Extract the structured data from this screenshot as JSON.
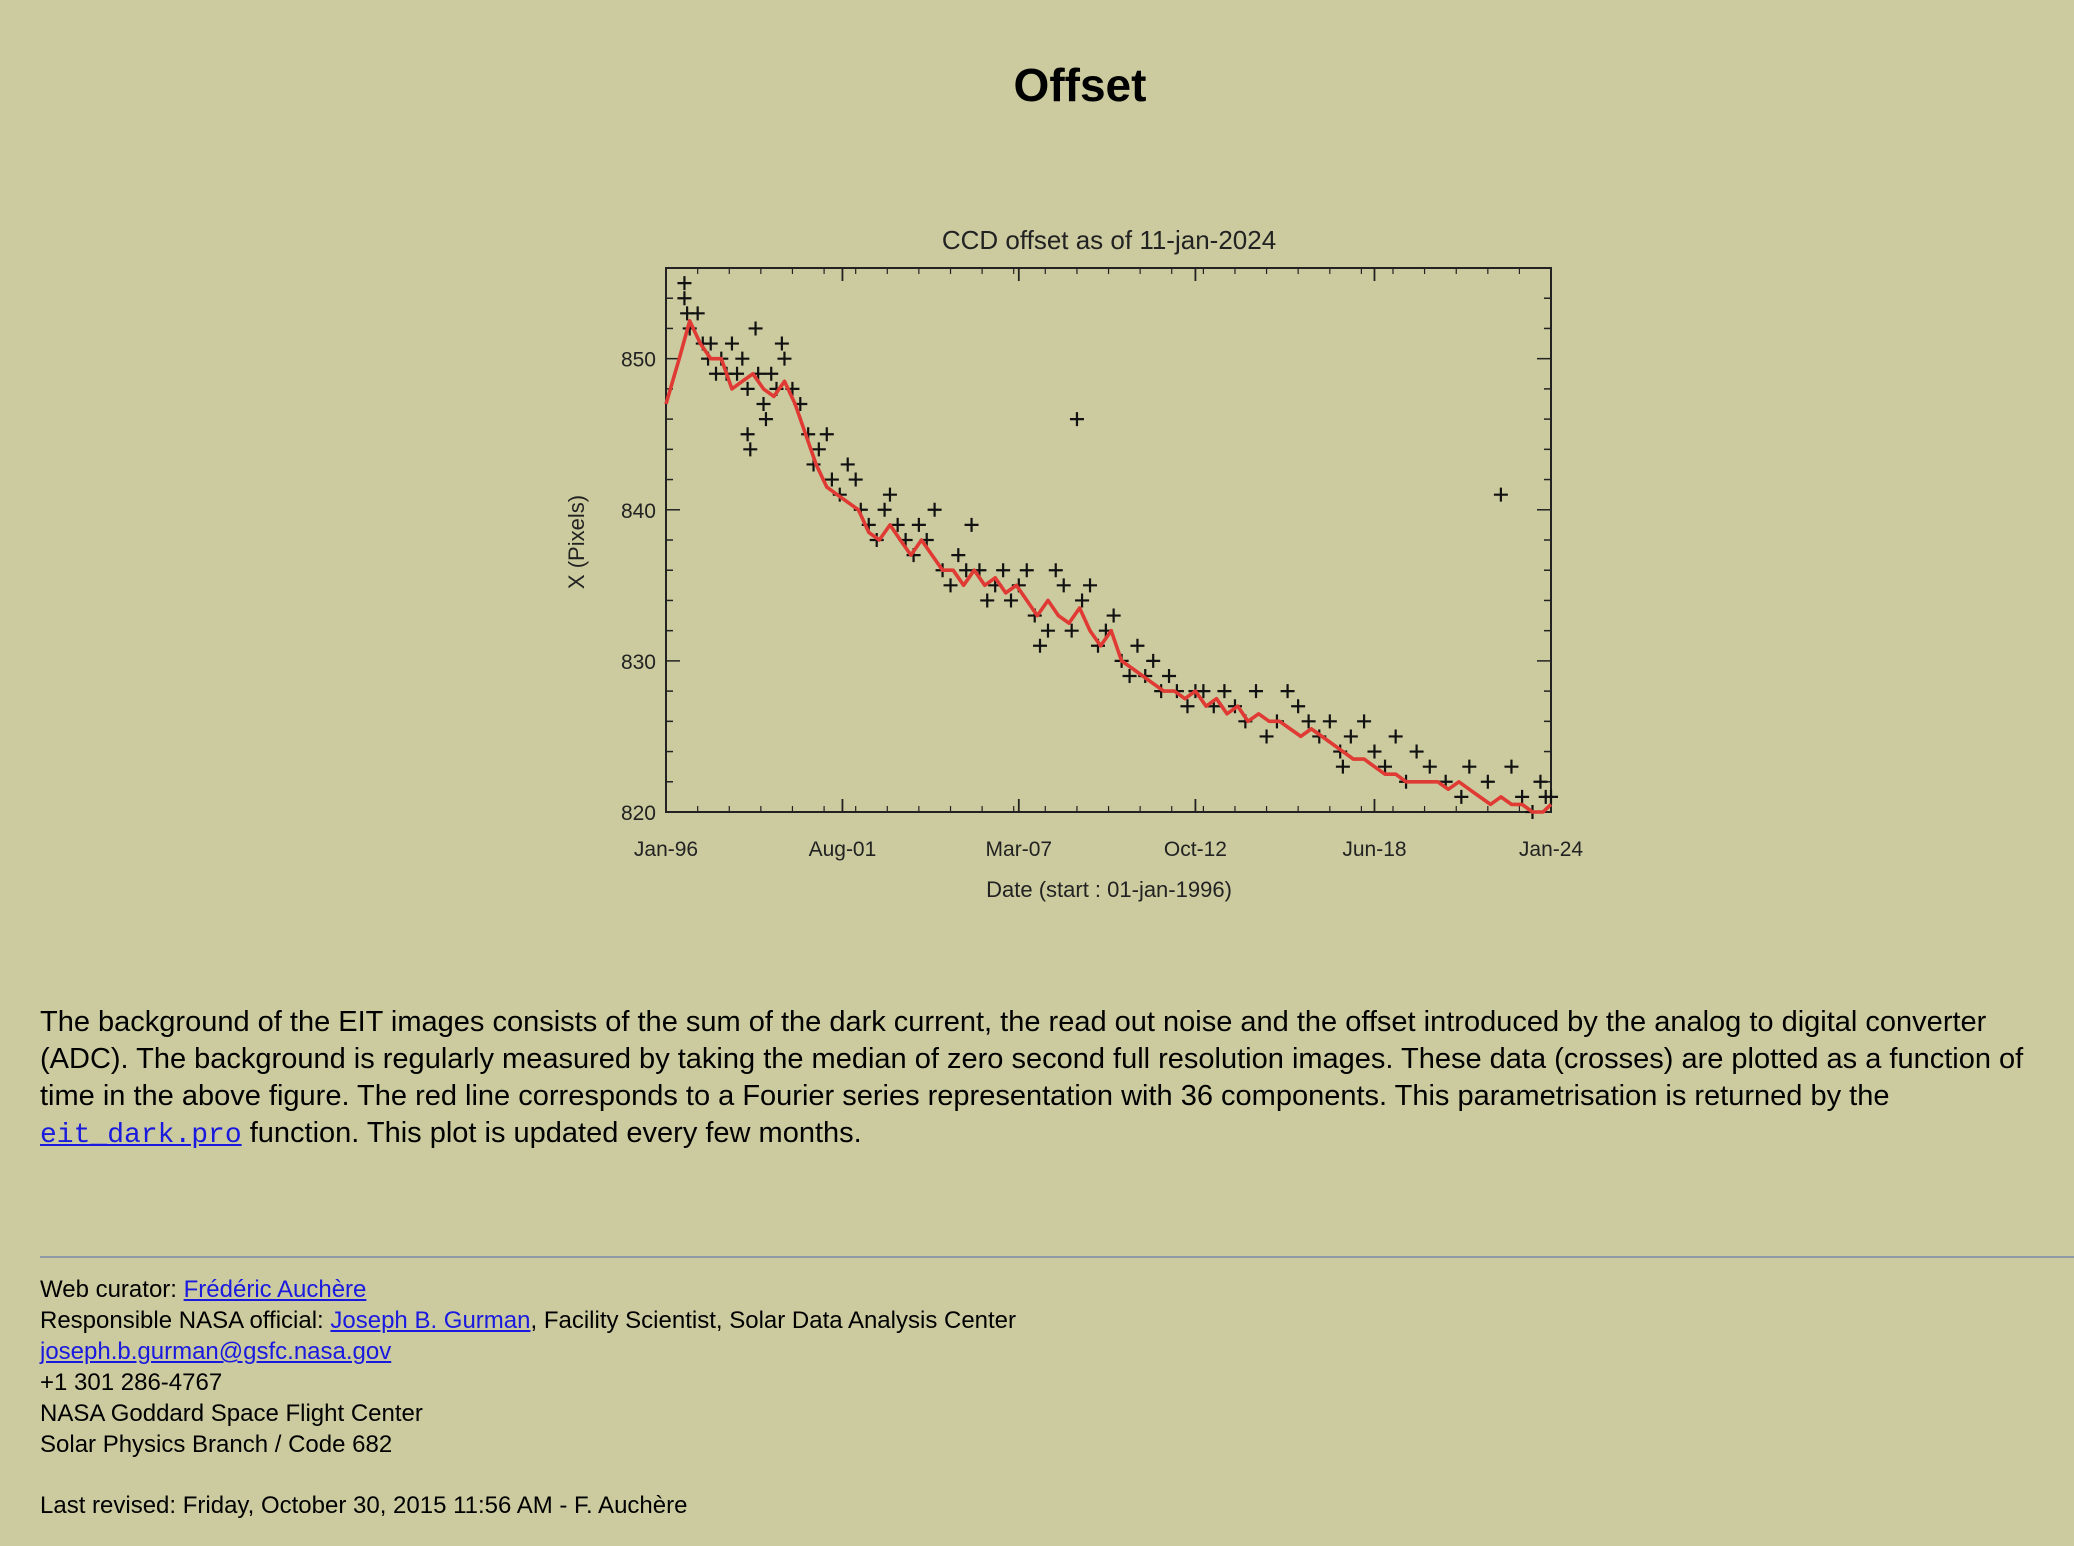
{
  "page": {
    "title": "Offset"
  },
  "description": {
    "before_link": "The background of the EIT images consists of the sum of the dark current, the read out noise and the offset introduced by the analog to digital converter (ADC). The background is regularly measured by taking the median of zero second full resolution images. These data (crosses) are plotted as a function of time in the above figure. The red line corresponds to a Fourier series representation with 36 components. This parametrisation is returned by the ",
    "link_text": "eit_dark.pro",
    "after_link": " function. This plot is updated every few months."
  },
  "footer": {
    "curator_label": "Web curator: ",
    "curator_name": "Frédéric Auchère",
    "official_label": "Responsible NASA official: ",
    "official_name": "Joseph B. Gurman",
    "official_role": ", Facility Scientist, Solar Data Analysis Center",
    "email": "joseph.b.gurman@gsfc.nasa.gov",
    "phone": "+1 301 286-4767",
    "org1": "NASA Goddard Space Flight Center",
    "org2": "Solar Physics Branch / Code 682",
    "last_revised": "Last revised: Friday, October 30, 2015 11:56 AM - F. Auchère"
  },
  "colors": {
    "background": "#cbcb9f",
    "fit_line": "#e03a34",
    "link": "#1a1adf"
  },
  "chart_data": {
    "type": "scatter",
    "title": "CCD offset as of 11-jan-2024",
    "xlabel": "Date (start : 01-jan-1996)",
    "ylabel": "X (Pixels)",
    "xlim": [
      "1996-01-01",
      "2024-01-01"
    ],
    "ylim": [
      820,
      856
    ],
    "x_ticks": [
      "1996-01-01",
      "2001-08-01",
      "2007-03-01",
      "2012-10-01",
      "2018-06-01",
      "2024-01-01"
    ],
    "x_tick_labels": [
      "Jan-96",
      "Aug-01",
      "Mar-07",
      "Oct-12",
      "Jun-18",
      "Jan-24"
    ],
    "y_ticks": [
      820,
      830,
      840,
      850
    ],
    "y_tick_labels": [
      "820",
      "830",
      "840",
      "850"
    ],
    "grid": false,
    "series": [
      {
        "marker": "cross",
        "points": [
          [
            "1996-08",
            855
          ],
          [
            "1996-08",
            854
          ],
          [
            "1996-09",
            853
          ],
          [
            "1996-10",
            852
          ],
          [
            "1997-01",
            853
          ],
          [
            "1997-03",
            851
          ],
          [
            "1997-05",
            850
          ],
          [
            "1997-06",
            851
          ],
          [
            "1997-08",
            849
          ],
          [
            "1997-10",
            850
          ],
          [
            "1997-12",
            849
          ],
          [
            "1998-02",
            851
          ],
          [
            "1998-04",
            849
          ],
          [
            "1998-06",
            850
          ],
          [
            "1998-08",
            848
          ],
          [
            "1998-08",
            845
          ],
          [
            "1998-09",
            844
          ],
          [
            "1998-11",
            852
          ],
          [
            "1998-12",
            849
          ],
          [
            "1999-02",
            847
          ],
          [
            "1999-03",
            846
          ],
          [
            "1999-05",
            849
          ],
          [
            "1999-07",
            848
          ],
          [
            "1999-09",
            851
          ],
          [
            "1999-10",
            850
          ],
          [
            "2000-01",
            848
          ],
          [
            "2000-04",
            847
          ],
          [
            "2000-07",
            845
          ],
          [
            "2000-09",
            843
          ],
          [
            "2000-11",
            844
          ],
          [
            "2001-02",
            845
          ],
          [
            "2001-04",
            842
          ],
          [
            "2001-07",
            841
          ],
          [
            "2001-10",
            843
          ],
          [
            "2002-01",
            842
          ],
          [
            "2002-03",
            840
          ],
          [
            "2002-06",
            839
          ],
          [
            "2002-09",
            838
          ],
          [
            "2002-12",
            840
          ],
          [
            "2003-02",
            841
          ],
          [
            "2003-05",
            839
          ],
          [
            "2003-08",
            838
          ],
          [
            "2003-11",
            837
          ],
          [
            "2004-01",
            839
          ],
          [
            "2004-04",
            838
          ],
          [
            "2004-07",
            840
          ],
          [
            "2004-10",
            836
          ],
          [
            "2005-01",
            835
          ],
          [
            "2005-04",
            837
          ],
          [
            "2005-07",
            836
          ],
          [
            "2005-09",
            839
          ],
          [
            "2005-12",
            836
          ],
          [
            "2006-03",
            834
          ],
          [
            "2006-06",
            835
          ],
          [
            "2006-09",
            836
          ],
          [
            "2006-12",
            834
          ],
          [
            "2007-03",
            835
          ],
          [
            "2007-06",
            836
          ],
          [
            "2007-09",
            833
          ],
          [
            "2007-11",
            831
          ],
          [
            "2008-02",
            832
          ],
          [
            "2008-05",
            836
          ],
          [
            "2008-08",
            835
          ],
          [
            "2008-11",
            832
          ],
          [
            "2009-01",
            846
          ],
          [
            "2009-03",
            834
          ],
          [
            "2009-06",
            835
          ],
          [
            "2009-09",
            831
          ],
          [
            "2009-12",
            832
          ],
          [
            "2010-03",
            833
          ],
          [
            "2010-06",
            830
          ],
          [
            "2010-09",
            829
          ],
          [
            "2010-12",
            831
          ],
          [
            "2011-03",
            829
          ],
          [
            "2011-06",
            830
          ],
          [
            "2011-09",
            828
          ],
          [
            "2011-12",
            829
          ],
          [
            "2012-03",
            828
          ],
          [
            "2012-07",
            827
          ],
          [
            "2012-10",
            828
          ],
          [
            "2013-01",
            828
          ],
          [
            "2013-05",
            827
          ],
          [
            "2013-09",
            828
          ],
          [
            "2014-01",
            827
          ],
          [
            "2014-05",
            826
          ],
          [
            "2014-09",
            828
          ],
          [
            "2015-01",
            825
          ],
          [
            "2015-05",
            826
          ],
          [
            "2015-09",
            828
          ],
          [
            "2016-01",
            827
          ],
          [
            "2016-05",
            826
          ],
          [
            "2016-09",
            825
          ],
          [
            "2017-01",
            826
          ],
          [
            "2017-05",
            824
          ],
          [
            "2017-06",
            823
          ],
          [
            "2017-09",
            825
          ],
          [
            "2018-02",
            826
          ],
          [
            "2018-06",
            824
          ],
          [
            "2018-10",
            823
          ],
          [
            "2019-02",
            825
          ],
          [
            "2019-06",
            822
          ],
          [
            "2019-10",
            824
          ],
          [
            "2020-03",
            823
          ],
          [
            "2020-09",
            822
          ],
          [
            "2021-03",
            821
          ],
          [
            "2021-06",
            823
          ],
          [
            "2022-01",
            822
          ],
          [
            "2022-06",
            841
          ],
          [
            "2022-10",
            823
          ],
          [
            "2023-02",
            821
          ],
          [
            "2023-06",
            820
          ],
          [
            "2023-09",
            822
          ],
          [
            "2023-11",
            821
          ],
          [
            "2024-01",
            821
          ]
        ]
      },
      {
        "name": "Fourier fit",
        "type": "line",
        "color": "#e03a34",
        "points": [
          [
            "1996-01",
            847
          ],
          [
            "1996-06",
            850
          ],
          [
            "1996-10",
            852.5
          ],
          [
            "1997-02",
            851
          ],
          [
            "1997-06",
            850
          ],
          [
            "1997-10",
            850
          ],
          [
            "1998-02",
            848
          ],
          [
            "1998-06",
            848.5
          ],
          [
            "1998-10",
            849
          ],
          [
            "1999-02",
            848
          ],
          [
            "1999-06",
            847.5
          ],
          [
            "1999-10",
            848.5
          ],
          [
            "2000-02",
            847
          ],
          [
            "2000-06",
            845
          ],
          [
            "2000-10",
            843
          ],
          [
            "2001-02",
            841.5
          ],
          [
            "2001-06",
            841
          ],
          [
            "2001-10",
            840.5
          ],
          [
            "2002-02",
            840
          ],
          [
            "2002-06",
            838.5
          ],
          [
            "2002-10",
            838
          ],
          [
            "2003-02",
            839
          ],
          [
            "2003-06",
            838
          ],
          [
            "2003-10",
            837
          ],
          [
            "2004-02",
            838
          ],
          [
            "2004-06",
            837
          ],
          [
            "2004-10",
            836
          ],
          [
            "2005-02",
            836
          ],
          [
            "2005-06",
            835
          ],
          [
            "2005-10",
            836
          ],
          [
            "2006-02",
            835
          ],
          [
            "2006-06",
            835.5
          ],
          [
            "2006-10",
            834.5
          ],
          [
            "2007-02",
            835
          ],
          [
            "2007-06",
            834
          ],
          [
            "2007-10",
            833
          ],
          [
            "2008-02",
            834
          ],
          [
            "2008-06",
            833
          ],
          [
            "2008-10",
            832.5
          ],
          [
            "2009-02",
            833.5
          ],
          [
            "2009-06",
            832
          ],
          [
            "2009-10",
            831
          ],
          [
            "2010-02",
            832
          ],
          [
            "2010-06",
            830
          ],
          [
            "2010-10",
            829.5
          ],
          [
            "2011-02",
            829
          ],
          [
            "2011-06",
            828.5
          ],
          [
            "2011-10",
            828
          ],
          [
            "2012-02",
            828
          ],
          [
            "2012-06",
            827.5
          ],
          [
            "2012-10",
            828
          ],
          [
            "2013-02",
            827
          ],
          [
            "2013-06",
            827.5
          ],
          [
            "2013-10",
            826.5
          ],
          [
            "2014-02",
            827
          ],
          [
            "2014-06",
            826
          ],
          [
            "2014-10",
            826.5
          ],
          [
            "2015-02",
            826
          ],
          [
            "2015-06",
            826
          ],
          [
            "2015-10",
            825.5
          ],
          [
            "2016-02",
            825
          ],
          [
            "2016-06",
            825.5
          ],
          [
            "2016-10",
            825
          ],
          [
            "2017-02",
            824.5
          ],
          [
            "2017-06",
            824
          ],
          [
            "2017-10",
            823.5
          ],
          [
            "2018-02",
            823.5
          ],
          [
            "2018-06",
            823
          ],
          [
            "2018-10",
            822.5
          ],
          [
            "2019-02",
            822.5
          ],
          [
            "2019-06",
            822
          ],
          [
            "2019-10",
            822
          ],
          [
            "2020-02",
            822
          ],
          [
            "2020-06",
            822
          ],
          [
            "2020-10",
            821.5
          ],
          [
            "2021-02",
            822
          ],
          [
            "2021-06",
            821.5
          ],
          [
            "2021-10",
            821
          ],
          [
            "2022-02",
            820.5
          ],
          [
            "2022-06",
            821
          ],
          [
            "2022-10",
            820.5
          ],
          [
            "2023-02",
            820.5
          ],
          [
            "2023-06",
            820
          ],
          [
            "2023-10",
            820
          ],
          [
            "2024-01",
            820.5
          ]
        ]
      }
    ]
  }
}
